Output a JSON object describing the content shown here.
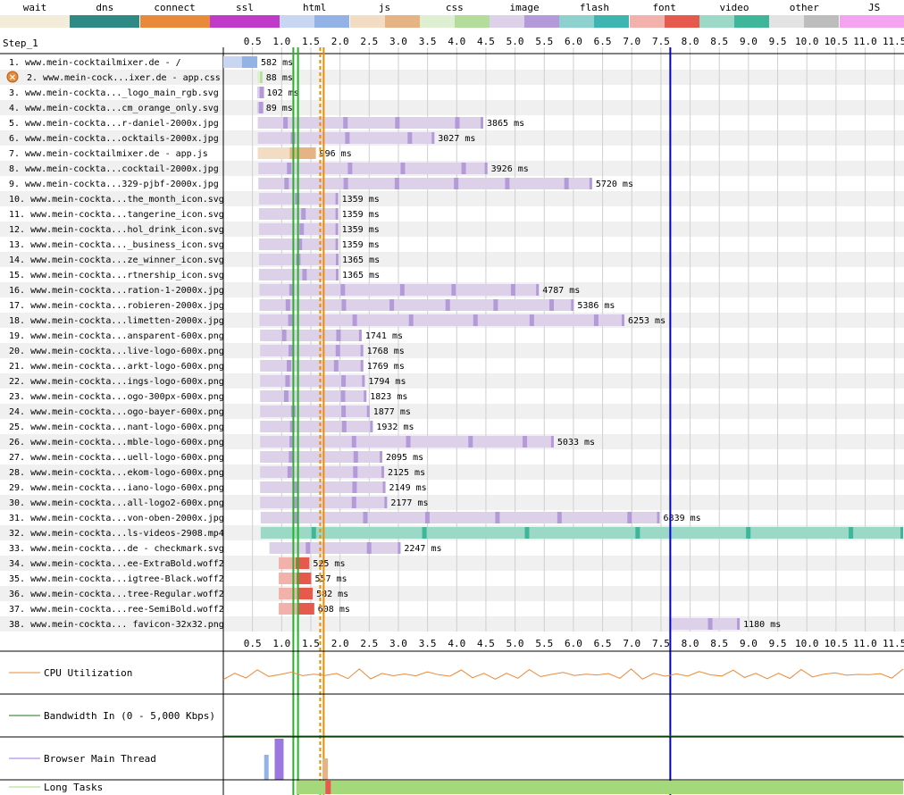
{
  "legend": [
    {
      "name": "wait",
      "c1": "#f2ecd9",
      "c2": "#f2ecd9"
    },
    {
      "name": "dns",
      "c1": "#2f8a86",
      "c2": "#2f8a86"
    },
    {
      "name": "connect",
      "c1": "#e98a3a",
      "c2": "#e98a3a"
    },
    {
      "name": "ssl",
      "c1": "#c139c9",
      "c2": "#c139c9"
    },
    {
      "name": "html",
      "c1": "#c8d6f2",
      "c2": "#93b2e6"
    },
    {
      "name": "js",
      "c1": "#f2dcc3",
      "c2": "#e6b484"
    },
    {
      "name": "css",
      "c1": "#dff0d2",
      "c2": "#b4dd9c"
    },
    {
      "name": "image",
      "c1": "#ddd1ea",
      "c2": "#b49ad8"
    },
    {
      "name": "flash",
      "c1": "#8fd1cf",
      "c2": "#3fb5b1"
    },
    {
      "name": "font",
      "c1": "#f3b1ab",
      "c2": "#e55a4c"
    },
    {
      "name": "video",
      "c1": "#9bd8c5",
      "c2": "#3fb69a"
    },
    {
      "name": "other",
      "c1": "#e3e3e3",
      "c2": "#bdbdbd"
    },
    {
      "name": "JS Execution",
      "c1": "#f4a3f0",
      "c2": "#f4a3f0"
    }
  ],
  "chart_data": {
    "type": "waterfall",
    "step_label": "Step_1",
    "x_ticks": [
      "0.5",
      "1.0",
      "1.5",
      "2.0",
      "2.5",
      "3.0",
      "3.5",
      "4.0",
      "4.5",
      "5.0",
      "5.5",
      "6.0",
      "6.5",
      "7.0",
      "7.5",
      "8.0",
      "8.5",
      "9.0",
      "9.5",
      "10.0",
      "10.5",
      "11.0",
      "11.5"
    ],
    "x_unit": "s",
    "x_range": [
      0.0,
      11.65
    ],
    "markers": [
      {
        "time": 1.2,
        "color": "#27b327",
        "style": "solid"
      },
      {
        "time": 1.28,
        "color": "#27b327",
        "style": "solid"
      },
      {
        "time": 1.66,
        "color": "#f08c00",
        "style": "dashed"
      },
      {
        "time": 1.72,
        "color": "#f08c00",
        "style": "solid"
      },
      {
        "time": 7.66,
        "color": "#0000dd",
        "style": "solid"
      }
    ],
    "requests": [
      {
        "n": "1.",
        "label": "www.mein-cocktailmixer.de - /",
        "type": "html",
        "start": 0.0,
        "end": 0.582,
        "ms": "582 ms"
      },
      {
        "n": "2.",
        "label": "www.mein-cock...ixer.de - app.css",
        "type": "css",
        "start": 0.582,
        "end": 0.67,
        "ms": "88 ms",
        "error": true
      },
      {
        "n": "3.",
        "label": "www.mein-cockta..._logo_main_rgb.svg",
        "type": "image",
        "start": 0.58,
        "end": 0.682,
        "ms": "102 ms"
      },
      {
        "n": "4.",
        "label": "www.mein-cockta...cm_orange_only.svg",
        "type": "image",
        "start": 0.58,
        "end": 0.669,
        "ms": "89 ms"
      },
      {
        "n": "5.",
        "label": "www.mein-cockta...r-daniel-2000x.jpg",
        "type": "image",
        "start": 0.59,
        "end": 4.455,
        "ms": "3865 ms"
      },
      {
        "n": "6.",
        "label": "www.mein-cockta...ocktails-2000x.jpg",
        "type": "image",
        "start": 0.59,
        "end": 3.617,
        "ms": "3027 ms"
      },
      {
        "n": "7.",
        "label": "www.mein-cocktailmixer.de - app.js",
        "type": "js",
        "start": 0.59,
        "end": 1.586,
        "ms": "996 ms"
      },
      {
        "n": "8.",
        "label": "www.mein-cockta...cocktail-2000x.jpg",
        "type": "image",
        "start": 0.6,
        "end": 4.526,
        "ms": "3926 ms"
      },
      {
        "n": "9.",
        "label": "www.mein-cockta...329-pjbf-2000x.jpg",
        "type": "image",
        "start": 0.6,
        "end": 6.32,
        "ms": "5720 ms"
      },
      {
        "n": "10.",
        "label": "www.mein-cockta...the_month_icon.svg",
        "type": "image",
        "start": 0.61,
        "end": 1.969,
        "ms": "1359 ms"
      },
      {
        "n": "11.",
        "label": "www.mein-cockta...tangerine_icon.svg",
        "type": "image",
        "start": 0.61,
        "end": 1.969,
        "ms": "1359 ms"
      },
      {
        "n": "12.",
        "label": "www.mein-cockta...hol_drink_icon.svg",
        "type": "image",
        "start": 0.61,
        "end": 1.969,
        "ms": "1359 ms"
      },
      {
        "n": "13.",
        "label": "www.mein-cockta..._business_icon.svg",
        "type": "image",
        "start": 0.61,
        "end": 1.969,
        "ms": "1359 ms"
      },
      {
        "n": "14.",
        "label": "www.mein-cockta...ze_winner_icon.svg",
        "type": "image",
        "start": 0.61,
        "end": 1.975,
        "ms": "1365 ms"
      },
      {
        "n": "15.",
        "label": "www.mein-cockta...rtnership_icon.svg",
        "type": "image",
        "start": 0.61,
        "end": 1.975,
        "ms": "1365 ms"
      },
      {
        "n": "16.",
        "label": "www.mein-cockta...ration-1-2000x.jpg",
        "type": "image",
        "start": 0.62,
        "end": 5.407,
        "ms": "4787 ms"
      },
      {
        "n": "17.",
        "label": "www.mein-cockta...robieren-2000x.jpg",
        "type": "image",
        "start": 0.62,
        "end": 6.006,
        "ms": "5386 ms"
      },
      {
        "n": "18.",
        "label": "www.mein-cockta...limetten-2000x.jpg",
        "type": "image",
        "start": 0.62,
        "end": 6.873,
        "ms": "6253 ms"
      },
      {
        "n": "19.",
        "label": "www.mein-cockta...ansparent-600x.png",
        "type": "image",
        "start": 0.63,
        "end": 2.371,
        "ms": "1741 ms"
      },
      {
        "n": "20.",
        "label": "www.mein-cockta...live-logo-600x.png",
        "type": "image",
        "start": 0.63,
        "end": 2.398,
        "ms": "1768 ms"
      },
      {
        "n": "21.",
        "label": "www.mein-cockta...arkt-logo-600x.png",
        "type": "image",
        "start": 0.63,
        "end": 2.399,
        "ms": "1769 ms"
      },
      {
        "n": "22.",
        "label": "www.mein-cockta...ings-logo-600x.png",
        "type": "image",
        "start": 0.63,
        "end": 2.424,
        "ms": "1794 ms"
      },
      {
        "n": "23.",
        "label": "www.mein-cockta...ogo-300px-600x.png",
        "type": "image",
        "start": 0.63,
        "end": 2.453,
        "ms": "1823 ms"
      },
      {
        "n": "24.",
        "label": "www.mein-cockta...ogo-bayer-600x.png",
        "type": "image",
        "start": 0.63,
        "end": 2.507,
        "ms": "1877 ms"
      },
      {
        "n": "25.",
        "label": "www.mein-cockta...nant-logo-600x.png",
        "type": "image",
        "start": 0.63,
        "end": 2.562,
        "ms": "1932 ms"
      },
      {
        "n": "26.",
        "label": "www.mein-cockta...mble-logo-600x.png",
        "type": "image",
        "start": 0.63,
        "end": 5.663,
        "ms": "5033 ms"
      },
      {
        "n": "27.",
        "label": "www.mein-cockta...uell-logo-600x.png",
        "type": "image",
        "start": 0.63,
        "end": 2.725,
        "ms": "2095 ms"
      },
      {
        "n": "28.",
        "label": "www.mein-cockta...ekom-logo-600x.png",
        "type": "image",
        "start": 0.63,
        "end": 2.755,
        "ms": "2125 ms"
      },
      {
        "n": "29.",
        "label": "www.mein-cockta...iano-logo-600x.png",
        "type": "image",
        "start": 0.63,
        "end": 2.779,
        "ms": "2149 ms"
      },
      {
        "n": "30.",
        "label": "www.mein-cockta...all-logo2-600x.png",
        "type": "image",
        "start": 0.63,
        "end": 2.807,
        "ms": "2177 ms"
      },
      {
        "n": "31.",
        "label": "www.mein-cockta...von-oben-2000x.jpg",
        "type": "image",
        "start": 0.64,
        "end": 7.479,
        "ms": "6839 ms"
      },
      {
        "n": "32.",
        "label": "www.mein-cockta...ls-videos-2908.mp4",
        "type": "video",
        "start": 0.64,
        "end": 11.65,
        "ms": ""
      },
      {
        "n": "33.",
        "label": "www.mein-cockta...de - checkmark.svg",
        "type": "image",
        "start": 0.79,
        "end": 3.037,
        "ms": "2247 ms"
      },
      {
        "n": "34.",
        "label": "www.mein-cockta...ee-ExtraBold.woff2",
        "type": "font",
        "start": 0.95,
        "end": 1.475,
        "ms": "525 ms"
      },
      {
        "n": "35.",
        "label": "www.mein-cockta...igtree-Black.woff2",
        "type": "font",
        "start": 0.95,
        "end": 1.507,
        "ms": "557 ms"
      },
      {
        "n": "36.",
        "label": "www.mein-cockta...tree-Regular.woff2",
        "type": "font",
        "start": 0.95,
        "end": 1.532,
        "ms": "582 ms"
      },
      {
        "n": "37.",
        "label": "www.mein-cockta...ree-SemiBold.woff2",
        "type": "font",
        "start": 0.95,
        "end": 1.558,
        "ms": "608 ms"
      },
      {
        "n": "38.",
        "label": "www.mein-cockta... favicon-32x32.png",
        "type": "image",
        "start": 7.67,
        "end": 8.85,
        "ms": "1180 ms"
      }
    ],
    "panels": [
      {
        "name": "CPU Utilization",
        "color": "#e98a3a"
      },
      {
        "name": "Bandwidth In (0 - 5,000 Kbps)",
        "color": "#1a7a1a"
      },
      {
        "name": "Browser Main Thread",
        "color": "#9a78e0"
      },
      {
        "name": "Long Tasks",
        "color": "#a5d87a"
      }
    ]
  }
}
